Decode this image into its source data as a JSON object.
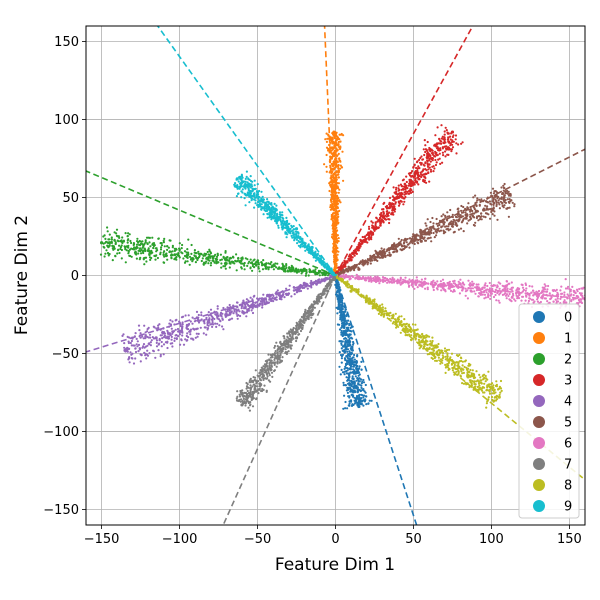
{
  "chart_data": {
    "type": "scatter",
    "xlabel": "Feature Dim 1",
    "ylabel": "Feature Dim 2",
    "xlim": [
      -160,
      160
    ],
    "ylim": [
      -160,
      160
    ],
    "xticks": [
      -150,
      -100,
      -50,
      0,
      50,
      100,
      150
    ],
    "yticks": [
      -150,
      -100,
      -50,
      0,
      50,
      100,
      150
    ],
    "grid": true,
    "legend_position": "lower-right",
    "series": [
      {
        "name": "0",
        "color": "#1f77b4",
        "spread": 0.09,
        "line": {
          "x1": 0,
          "y1": 0,
          "x2": 52,
          "y2": -160
        },
        "points": [
          [
            6,
            -20
          ],
          [
            8,
            -35
          ],
          [
            10,
            -50
          ],
          [
            12,
            -62
          ],
          [
            14,
            -72
          ],
          [
            15,
            -84
          ]
        ]
      },
      {
        "name": "1",
        "color": "#ff7f0e",
        "spread": 0.05,
        "line": {
          "x1": 0,
          "y1": 0,
          "x2": -7,
          "y2": 160
        },
        "points": [
          [
            1,
            10
          ],
          [
            0,
            25
          ],
          [
            0,
            45
          ],
          [
            -1,
            60
          ],
          [
            -1,
            78
          ],
          [
            -1,
            92
          ]
        ]
      },
      {
        "name": "2",
        "color": "#2ca02c",
        "spread": 0.06,
        "line": {
          "x1": 0,
          "y1": 0,
          "x2": -160,
          "y2": 67
        },
        "points": [
          [
            -20,
            4
          ],
          [
            -45,
            7
          ],
          [
            -70,
            10
          ],
          [
            -95,
            13
          ],
          [
            -120,
            16
          ],
          [
            -150,
            21
          ]
        ]
      },
      {
        "name": "3",
        "color": "#d62728",
        "spread": 0.07,
        "line": {
          "x1": 0,
          "y1": 0,
          "x2": 88,
          "y2": 160
        },
        "points": [
          [
            10,
            10
          ],
          [
            25,
            30
          ],
          [
            40,
            50
          ],
          [
            52,
            60
          ],
          [
            62,
            75
          ],
          [
            75,
            92
          ]
        ]
      },
      {
        "name": "4",
        "color": "#9467bd",
        "spread": 0.07,
        "line": {
          "x1": 0,
          "y1": 0,
          "x2": -160,
          "y2": -49
        },
        "points": [
          [
            -20,
            -5
          ],
          [
            -45,
            -15
          ],
          [
            -70,
            -25
          ],
          [
            -95,
            -32
          ],
          [
            -115,
            -40
          ],
          [
            -135,
            -48
          ]
        ]
      },
      {
        "name": "5",
        "color": "#8c564b",
        "spread": 0.07,
        "line": {
          "x1": 0,
          "y1": 0,
          "x2": 160,
          "y2": 81
        },
        "points": [
          [
            15,
            4
          ],
          [
            35,
            13
          ],
          [
            55,
            22
          ],
          [
            75,
            33
          ],
          [
            95,
            42
          ],
          [
            112,
            52
          ]
        ]
      },
      {
        "name": "6",
        "color": "#e377c2",
        "spread": 0.05,
        "line": {
          "x1": 0,
          "y1": 0,
          "x2": 160,
          "y2": -15
        },
        "points": [
          [
            15,
            -2
          ],
          [
            45,
            -4
          ],
          [
            75,
            -7
          ],
          [
            100,
            -10
          ],
          [
            130,
            -13
          ],
          [
            160,
            -15
          ]
        ]
      },
      {
        "name": "7",
        "color": "#7f7f7f",
        "spread": 0.06,
        "line": {
          "x1": 0,
          "y1": 0,
          "x2": -72,
          "y2": -160
        },
        "points": [
          [
            -5,
            -10
          ],
          [
            -15,
            -25
          ],
          [
            -25,
            -40
          ],
          [
            -35,
            -55
          ],
          [
            -48,
            -70
          ],
          [
            -60,
            -83
          ]
        ]
      },
      {
        "name": "8",
        "color": "#bcbd22",
        "spread": 0.06,
        "line": {
          "x1": 0,
          "y1": 0,
          "x2": 160,
          "y2": -131
        },
        "points": [
          [
            10,
            -10
          ],
          [
            25,
            -20
          ],
          [
            45,
            -35
          ],
          [
            65,
            -50
          ],
          [
            85,
            -65
          ],
          [
            105,
            -78
          ]
        ]
      },
      {
        "name": "9",
        "color": "#17becf",
        "spread": 0.07,
        "line": {
          "x1": 0,
          "y1": 0,
          "x2": -114,
          "y2": 160
        },
        "points": [
          [
            -5,
            5
          ],
          [
            -15,
            18
          ],
          [
            -25,
            30
          ],
          [
            -38,
            42
          ],
          [
            -50,
            52
          ],
          [
            -63,
            62
          ]
        ]
      }
    ]
  }
}
